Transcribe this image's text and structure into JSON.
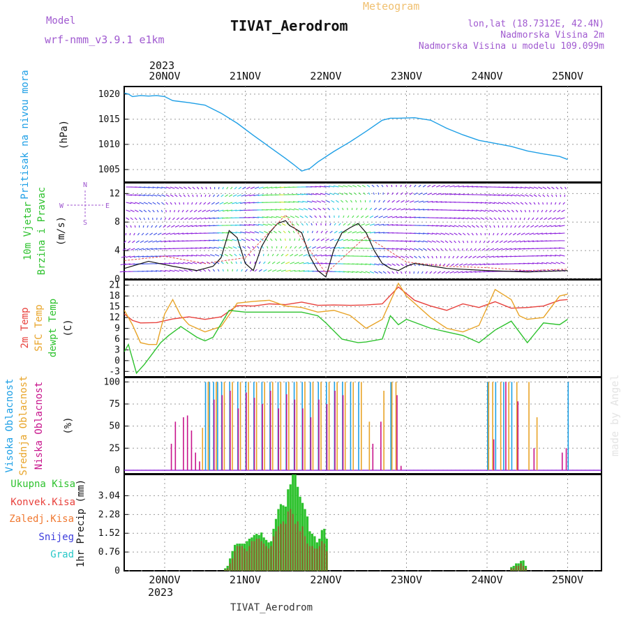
{
  "header": {
    "model_label": "Model",
    "model_name": "wrf-nmm_v3.9.1  e1km",
    "meteogram": "Meteogram",
    "title": "TIVAT_Aerodrom",
    "lonlat": "lon,lat (18.7312E, 42.4N)",
    "elev": "Nadmorska Visina 2m",
    "elev_model": "Nadmorska Visina u modelu 109.099m",
    "footer": "TIVAT_Aerodrom",
    "watermark": "made by Angel"
  },
  "time_axis": {
    "year": "2023",
    "days": [
      "20NOV",
      "21NOV",
      "22NOV",
      "23NOV",
      "24NOV",
      "25NOV"
    ]
  },
  "colors": {
    "pressure": "#1e9fe6",
    "t2m": "#e8413c",
    "tsfc": "#e8a428",
    "dewpt": "#2ec22e",
    "high": "#1ea0e6",
    "mid": "#e8a428",
    "low": "#c8148c",
    "total": "#2ec22e",
    "conv": "#e8413c",
    "frozen": "#f07830",
    "snow": "#3c3cdc",
    "hail": "#28c8c8",
    "wind": "#8b1edc"
  },
  "chart_data": [
    {
      "type": "line",
      "panel": "pressure",
      "ylabel": [
        "Pritisak na nivou mora",
        "(hPa)"
      ],
      "yticks": [
        1005,
        1010,
        1015,
        1020
      ],
      "ylim": [
        1002.5,
        1021.5
      ],
      "series": [
        {
          "x": [
            0,
            0.05,
            0.1,
            0.2,
            0.3,
            0.4,
            0.5,
            0.6,
            0.8,
            1.0,
            1.2,
            1.4,
            1.6,
            1.8,
            2.0,
            2.1,
            2.2,
            2.3,
            2.4,
            2.6,
            2.8,
            3.0,
            3.2,
            3.3,
            3.4,
            3.6,
            3.8,
            4.0,
            4.2,
            4.4,
            4.6,
            4.8,
            5.0,
            5.2,
            5.4,
            5.5
          ],
          "values": [
            1020.2,
            1020,
            1019.5,
            1019.7,
            1019.6,
            1019.7,
            1019.5,
            1018.7,
            1018.3,
            1017.8,
            1016.2,
            1014.2,
            1011.8,
            1009.5,
            1007.2,
            1006,
            1004.7,
            1005.2,
            1006.5,
            1008.6,
            1010.5,
            1012.6,
            1014.8,
            1015.2,
            1015.2,
            1015.3,
            1014.8,
            1013.2,
            1011.9,
            1010.8,
            1010.2,
            1009.6,
            1008.7,
            1008.1,
            1007.6,
            1007
          ]
        }
      ]
    },
    {
      "type": "line",
      "panel": "wind",
      "ylabel": [
        "10m Vjetar",
        "Brzina i Pravac",
        "(m/s)"
      ],
      "compass": {
        "n": "N",
        "s": "S",
        "e": "E",
        "w": "W"
      },
      "yticks": [
        0,
        4,
        8,
        12
      ],
      "ylim": [
        0,
        13.5
      ],
      "series": [
        {
          "name": "speed",
          "x": [
            0,
            0.3,
            0.6,
            0.9,
            1.0,
            1.1,
            1.2,
            1.3,
            1.4,
            1.5,
            1.6,
            1.7,
            1.8,
            1.9,
            2.0,
            2.05,
            2.1,
            2.2,
            2.3,
            2.4,
            2.5,
            2.6,
            2.7,
            2.8,
            2.9,
            3.0,
            3.1,
            3.2,
            3.3,
            3.4,
            3.5,
            3.6,
            4.0,
            4.5,
            5.0,
            5.5
          ],
          "values": [
            1.5,
            2.5,
            1.8,
            1.2,
            1.5,
            1.8,
            3,
            6.8,
            5.8,
            2.2,
            1.2,
            4.5,
            6.5,
            7.8,
            8.2,
            7.5,
            7.2,
            6.5,
            3.2,
            1.2,
            0.3,
            4.2,
            6.5,
            7.2,
            7.8,
            6.5,
            4.0,
            2.2,
            1.5,
            1.2,
            1.8,
            2.2,
            1.5,
            1.2,
            1.0,
            1.2
          ]
        },
        {
          "name": "gust",
          "x": [
            0,
            0.5,
            1.0,
            1.5,
            2.0,
            2.5,
            3.0,
            3.5,
            4.0,
            4.5,
            5.0,
            5.5
          ],
          "values": [
            2.6,
            3.2,
            2.2,
            3.0,
            9.0,
            0.8,
            6.0,
            2.4,
            1.8,
            1.6,
            1.2,
            1.4
          ]
        }
      ]
    },
    {
      "type": "line",
      "panel": "temperature",
      "ylabel": [
        "2m Temp",
        "SFC Temp",
        "dewpt Temp",
        "(C)"
      ],
      "yticks": [
        -3,
        0,
        3,
        6,
        9,
        12,
        15,
        18,
        21
      ],
      "ylim": [
        -4.5,
        22.5
      ],
      "series": [
        {
          "name": "2m Temp",
          "x": [
            0,
            0.1,
            0.2,
            0.4,
            0.6,
            0.8,
            1.0,
            1.2,
            1.4,
            1.6,
            1.8,
            2.0,
            2.2,
            2.4,
            2.6,
            2.8,
            3.0,
            3.2,
            3.4,
            3.6,
            3.8,
            4.0,
            4.2,
            4.4,
            4.6,
            4.8,
            5.0,
            5.2,
            5.4,
            5.5
          ],
          "values": [
            13,
            11.2,
            10.5,
            10.6,
            11.6,
            12.2,
            11.5,
            12.2,
            15.3,
            15.2,
            15.8,
            15.6,
            16.3,
            15.4,
            15.5,
            15.4,
            15.5,
            15.8,
            20.5,
            16.8,
            15.2,
            14,
            15.8,
            14.8,
            16.4,
            14.6,
            14.8,
            15.2,
            16.8,
            17
          ]
        },
        {
          "name": "SFC Temp",
          "x": [
            0,
            0.1,
            0.2,
            0.3,
            0.4,
            0.5,
            0.6,
            0.7,
            0.8,
            1.0,
            1.2,
            1.4,
            1.6,
            1.8,
            2.0,
            2.2,
            2.4,
            2.6,
            2.8,
            3.0,
            3.2,
            3.4,
            3.5,
            3.6,
            3.8,
            4.0,
            4.2,
            4.4,
            4.6,
            4.8,
            4.9,
            5.0,
            5.2,
            5.4,
            5.5
          ],
          "values": [
            14,
            10,
            5,
            4.5,
            4.5,
            13,
            17,
            12.5,
            10,
            8,
            9.5,
            16,
            16.5,
            16.8,
            15.2,
            14.8,
            13.5,
            14,
            12.6,
            9,
            11.5,
            21.5,
            18,
            16,
            12,
            9,
            8,
            9.8,
            19.8,
            17,
            12.5,
            11.5,
            12,
            18,
            18.5
          ]
        },
        {
          "name": "dewpt Temp",
          "x": [
            0,
            0.05,
            0.15,
            0.25,
            0.35,
            0.45,
            0.55,
            0.7,
            0.9,
            1.0,
            1.1,
            1.3,
            1.5,
            1.7,
            2.0,
            2.2,
            2.4,
            2.5,
            2.7,
            2.9,
            3.0,
            3.2,
            3.3,
            3.4,
            3.5,
            3.8,
            4.0,
            4.2,
            4.4,
            4.6,
            4.8,
            5.0,
            5.2,
            5.4,
            5.5
          ],
          "values": [
            2.5,
            4.5,
            -3.5,
            -1,
            2,
            5,
            7,
            9.5,
            6.5,
            5.5,
            6.5,
            14,
            13.5,
            13.5,
            13.5,
            13.5,
            12.5,
            10.5,
            6,
            5,
            5.2,
            6,
            12.5,
            10,
            11.5,
            9,
            8,
            7,
            5,
            8.5,
            11,
            5,
            10.5,
            10,
            11.5
          ]
        }
      ]
    },
    {
      "type": "bar",
      "panel": "cloud",
      "ylabel": [
        "Visoka Oblacnost",
        "Srednja Oblacnost",
        "Niska Oblacnost",
        "(%)"
      ],
      "yticks": [
        0,
        25,
        50,
        75,
        100
      ],
      "ylim": [
        -4,
        105
      ],
      "series": [
        {
          "name": "Visoka Oblacnost",
          "x": [
            1.0,
            1.05,
            1.1,
            1.15,
            1.2,
            1.3,
            1.4,
            1.5,
            1.6,
            1.7,
            1.8,
            1.9,
            2.0,
            2.1,
            2.2,
            2.3,
            2.4,
            2.5,
            2.6,
            2.7,
            2.8,
            2.9,
            3.3,
            4.5,
            4.6,
            4.7,
            4.8,
            5.5
          ],
          "values": [
            100,
            100,
            100,
            100,
            100,
            100,
            100,
            100,
            100,
            100,
            100,
            100,
            100,
            100,
            100,
            100,
            100,
            100,
            100,
            100,
            100,
            100,
            100,
            100,
            100,
            100,
            100,
            100
          ]
        },
        {
          "name": "Srednja Oblacnost",
          "x": [
            0.95,
            1.02,
            1.12,
            1.22,
            1.32,
            1.42,
            1.52,
            1.62,
            1.72,
            1.82,
            1.92,
            2.02,
            2.12,
            2.22,
            2.32,
            2.42,
            2.52,
            2.62,
            2.72,
            2.82,
            2.92,
            3.02,
            3.2,
            3.3,
            3.35,
            4.5,
            4.55,
            4.65,
            4.75,
            4.85,
            5.0,
            5.1
          ],
          "values": [
            48,
            100,
            100,
            100,
            100,
            100,
            100,
            100,
            100,
            100,
            100,
            100,
            100,
            100,
            100,
            100,
            100,
            100,
            100,
            100,
            100,
            55,
            90,
            100,
            100,
            100,
            100,
            100,
            100,
            100,
            100,
            60
          ]
        },
        {
          "name": "Niska Oblacnost",
          "x": [
            0.55,
            0.6,
            0.7,
            0.75,
            0.8,
            0.85,
            0.9,
            1.08,
            1.18,
            1.28,
            1.38,
            1.48,
            1.58,
            1.68,
            1.78,
            1.88,
            1.98,
            2.08,
            2.18,
            2.28,
            2.38,
            2.48,
            2.58,
            2.68,
            3.05,
            3.15,
            3.35,
            3.4,
            4.55,
            4.7,
            4.85,
            5.05,
            5.4,
            5.45
          ],
          "values": [
            30,
            55,
            60,
            62,
            45,
            20,
            10,
            80,
            85,
            90,
            70,
            88,
            82,
            75,
            90,
            70,
            86,
            80,
            70,
            60,
            80,
            75,
            90,
            85,
            30,
            55,
            85,
            5,
            35,
            100,
            78,
            25,
            20,
            25
          ]
        }
      ]
    },
    {
      "type": "bar",
      "panel": "precip",
      "ylabel": "1hr Precip (mm)",
      "legend": [
        "Ukupna Kisa",
        "Konvek.Kisa",
        "Zaledj.Kisa",
        "Snijeg",
        "Grad"
      ],
      "yticks": [
        0,
        0.76,
        1.52,
        2.28,
        3.04
      ],
      "ylim": [
        0,
        3.9
      ],
      "series": [
        {
          "name": "Ukupna Kisa",
          "x": [
            1.25,
            1.28,
            1.31,
            1.34,
            1.37,
            1.4,
            1.43,
            1.46,
            1.49,
            1.52,
            1.55,
            1.58,
            1.61,
            1.64,
            1.67,
            1.7,
            1.73,
            1.76,
            1.79,
            1.82,
            1.85,
            1.88,
            1.91,
            1.94,
            1.97,
            2.0,
            2.03,
            2.06,
            2.09,
            2.12,
            2.15,
            2.18,
            2.21,
            2.24,
            2.27,
            2.3,
            2.33,
            2.36,
            2.39,
            2.42,
            2.45,
            2.48,
            2.51,
            4.8,
            4.83,
            4.86,
            4.89,
            4.92,
            4.95,
            4.98
          ],
          "values": [
            0.1,
            0.2,
            0.5,
            0.8,
            1.05,
            1.1,
            1.1,
            1.1,
            1.1,
            1.2,
            1.3,
            1.35,
            1.45,
            1.5,
            1.45,
            1.55,
            1.35,
            1.25,
            1.15,
            1.2,
            1.7,
            2.1,
            2.5,
            2.7,
            2.65,
            2.6,
            3.3,
            3.5,
            3.9,
            3.9,
            3.4,
            3.0,
            2.75,
            2.5,
            2.2,
            1.6,
            1.5,
            1.4,
            1.15,
            1.3,
            1.65,
            1.7,
            1.3,
            0.15,
            0.2,
            0.3,
            0.3,
            0.4,
            0.42,
            0.2
          ],
          "conv": [
            0.05,
            0.1,
            0.3,
            0.5,
            0.8,
            1.0,
            1.0,
            1.0,
            0.9,
            0.8,
            1.0,
            1.2,
            1.2,
            1.3,
            1.3,
            1.2,
            1.1,
            1.0,
            0.9,
            1.0,
            1.4,
            1.6,
            1.8,
            1.9,
            2.0,
            1.9,
            2.4,
            2.5,
            2.3,
            1.9,
            2.0,
            1.6,
            1.8,
            1.4,
            1.1,
            1.0,
            1.0,
            0.9,
            0.9,
            1.0,
            1.2,
            1.1,
            0.8,
            0.1,
            0.1,
            0.2,
            0.2,
            0.3,
            0.2,
            0.1
          ]
        }
      ]
    }
  ]
}
